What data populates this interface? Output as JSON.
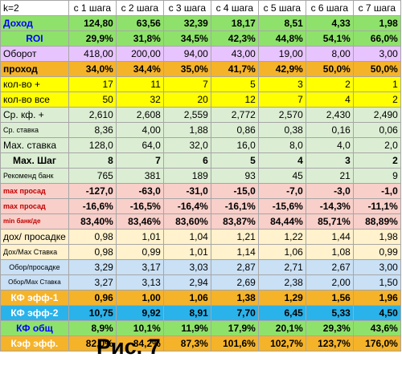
{
  "header": {
    "label": "k=2",
    "cols": [
      "с 1 шага",
      "с 2 шага",
      "с 3 шага",
      "с 4 шага",
      "с 5 шага",
      "с 6 шага",
      "с 7 шага"
    ]
  },
  "rows": [
    {
      "label": "Доход",
      "values": [
        "124,80",
        "63,56",
        "32,39",
        "18,17",
        "8,51",
        "4,33",
        "1,98"
      ],
      "bg": "#8ee26b",
      "label_color": "#0000ff",
      "bold": true,
      "label_align": "left"
    },
    {
      "label": "ROI",
      "values": [
        "29,9%",
        "31,8%",
        "34,5%",
        "42,3%",
        "44,8%",
        "54,1%",
        "66,0%"
      ],
      "bg": "#8ee26b",
      "label_color": "#0000ff",
      "bold": true,
      "label_align": "center"
    },
    {
      "label": "Оборот",
      "values": [
        "418,00",
        "200,00",
        "94,00",
        "43,00",
        "19,00",
        "8,00",
        "3,00"
      ],
      "bg": "#e8c4ff",
      "label_color": "#000000",
      "bold": false,
      "label_align": "left"
    },
    {
      "label": "проход",
      "values": [
        "34,0%",
        "34,4%",
        "35,0%",
        "41,7%",
        "42,9%",
        "50,0%",
        "50,0%"
      ],
      "bg": "#f5b32a",
      "label_color": "#000000",
      "bold": true,
      "label_align": "left"
    },
    {
      "label": "кол-во +",
      "values": [
        "17",
        "11",
        "7",
        "5",
        "3",
        "2",
        "1"
      ],
      "bg": "#ffff00",
      "label_color": "#000000",
      "bold": false,
      "label_align": "left"
    },
    {
      "label": "кол-во все",
      "values": [
        "50",
        "32",
        "20",
        "12",
        "7",
        "4",
        "2"
      ],
      "bg": "#ffff00",
      "label_color": "#000000",
      "bold": false,
      "label_align": "left"
    },
    {
      "label": "Ср. кф. +",
      "values": [
        "2,610",
        "2,608",
        "2,559",
        "2,772",
        "2,570",
        "2,430",
        "2,490"
      ],
      "bg": "#dbeed3",
      "label_color": "#000000",
      "bold": false,
      "label_align": "left"
    },
    {
      "label": "Ср. ставка",
      "values": [
        "8,36",
        "4,00",
        "1,88",
        "0,86",
        "0,38",
        "0,16",
        "0,06"
      ],
      "bg": "#dbeed3",
      "label_color": "#000000",
      "bold": false,
      "label_align": "left",
      "label_size": "small"
    },
    {
      "label": "Мах. ставка",
      "values": [
        "128,0",
        "64,0",
        "32,0",
        "16,0",
        "8,0",
        "4,0",
        "2,0"
      ],
      "bg": "#dbeed3",
      "label_color": "#000000",
      "bold": false,
      "label_align": "left"
    },
    {
      "label": "Мах. Шаг",
      "values": [
        "8",
        "7",
        "6",
        "5",
        "4",
        "3",
        "2"
      ],
      "bg": "#dbeed3",
      "label_color": "#000000",
      "bold": true,
      "label_align": "center"
    },
    {
      "label": "Рекоменд банк",
      "values": [
        "765",
        "381",
        "189",
        "93",
        "45",
        "21",
        "9"
      ],
      "bg": "#dbeed3",
      "label_color": "#000000",
      "bold": false,
      "label_align": "left",
      "label_size": "small"
    },
    {
      "label": "max просад",
      "values": [
        "-127,0",
        "-63,0",
        "-31,0",
        "-15,0",
        "-7,0",
        "-3,0",
        "-1,0"
      ],
      "bg": "#f8cfc9",
      "label_color": "#c00000",
      "bold": true,
      "label_align": "left",
      "label_size": "small"
    },
    {
      "label": "max просад",
      "values": [
        "-16,6%",
        "-16,5%",
        "-16,4%",
        "-16,1%",
        "-15,6%",
        "-14,3%",
        "-11,1%"
      ],
      "bg": "#f8cfc9",
      "label_color": "#c00000",
      "bold": true,
      "label_align": "left",
      "label_size": "small"
    },
    {
      "label": "min банк/де",
      "values": [
        "83,40%",
        "83,46%",
        "83,60%",
        "83,87%",
        "84,44%",
        "85,71%",
        "88,89%"
      ],
      "bg": "#f8cfc9",
      "label_color": "#c00000",
      "bold": true,
      "label_align": "left",
      "label_size": "tiny"
    },
    {
      "label": "дох/ просадке",
      "values": [
        "0,98",
        "1,01",
        "1,04",
        "1,21",
        "1,22",
        "1,44",
        "1,98"
      ],
      "bg": "#fff2cc",
      "label_color": "#000000",
      "bold": false,
      "label_align": "left"
    },
    {
      "label": "Дох/Мах Ставка",
      "values": [
        "0,98",
        "0,99",
        "1,01",
        "1,14",
        "1,06",
        "1,08",
        "0,99"
      ],
      "bg": "#fff2cc",
      "label_color": "#000000",
      "bold": false,
      "label_align": "left",
      "label_size": "small"
    },
    {
      "label": "Обор/просадке",
      "values": [
        "3,29",
        "3,17",
        "3,03",
        "2,87",
        "2,71",
        "2,67",
        "3,00"
      ],
      "bg": "#c9e0f5",
      "label_color": "#000000",
      "bold": false,
      "label_align": "center",
      "label_size": "small"
    },
    {
      "label": "Обор/Мах Ставка",
      "values": [
        "3,27",
        "3,13",
        "2,94",
        "2,69",
        "2,38",
        "2,00",
        "1,50"
      ],
      "bg": "#c9e0f5",
      "label_color": "#000000",
      "bold": false,
      "label_align": "center",
      "label_size": "tiny"
    },
    {
      "label": "КФ эфф-1",
      "values": [
        "0,96",
        "1,00",
        "1,06",
        "1,38",
        "1,29",
        "1,56",
        "1,96"
      ],
      "bg": "#f5b32a",
      "label_color": "#ffffff",
      "bold": true,
      "label_align": "center"
    },
    {
      "label": "КФ эфф-2",
      "values": [
        "10,75",
        "9,92",
        "8,91",
        "7,70",
        "6,45",
        "5,33",
        "4,50"
      ],
      "bg": "#2ab2ea",
      "label_color": "#ffffff",
      "bold": true,
      "label_align": "center"
    },
    {
      "label": "КФ общ",
      "values": [
        "8,9%",
        "10,1%",
        "11,9%",
        "17,9%",
        "20,1%",
        "29,3%",
        "43,6%"
      ],
      "bg": "#8ee26b",
      "label_color": "#0000ff",
      "bold": true,
      "label_align": "center"
    },
    {
      "label": "Кэф эфф.",
      "values": [
        "82,0%",
        "84,2%",
        "87,3%",
        "101,6%",
        "102,7%",
        "123,7%",
        "176,0%"
      ],
      "bg": "#f5b32a",
      "label_color": "#ffffff",
      "bold": true,
      "label_align": "center"
    }
  ],
  "caption": "Рис. 7"
}
